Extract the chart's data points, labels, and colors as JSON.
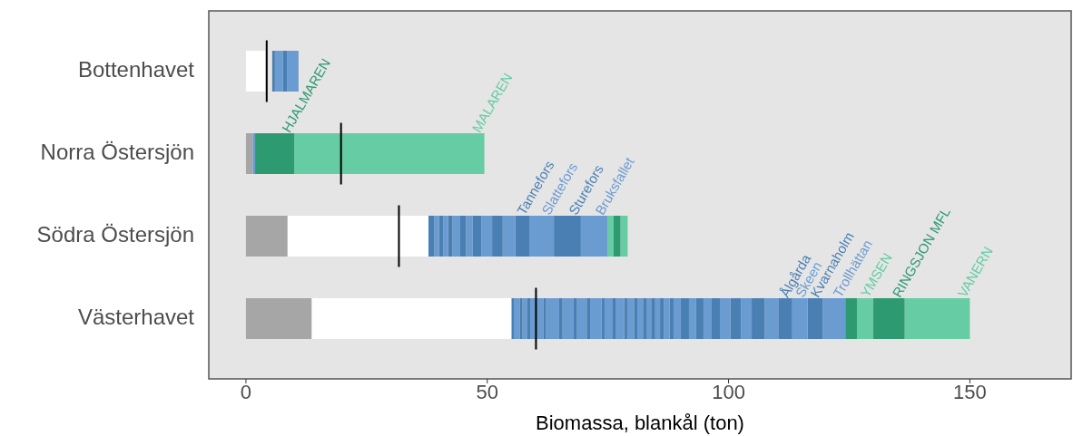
{
  "chart_data": {
    "type": "bar",
    "orientation": "horizontal",
    "stacked": true,
    "xlabel": "Biomassa, blankål (ton)",
    "categories": [
      "Bottenhavet",
      "Norra Östersjön",
      "Södra Östersjön",
      "Västerhavet"
    ],
    "xlim": [
      -7.7,
      171
    ],
    "xticks": [
      0,
      50,
      100,
      150
    ],
    "series": [
      {
        "values": [
          4.0,
          1.4,
          8.6,
          13.6
        ],
        "colors": [
          "#ffffff",
          "#a6a6a6",
          "#a6a6a6",
          "#a6a6a6"
        ]
      },
      {
        "values": [
          1.4,
          0.5,
          29.2,
          41.4
        ],
        "colors": [
          "#e5e5e5",
          "#6a9bd1",
          "#ffffff",
          "#ffffff"
        ]
      },
      {
        "values": [
          0.6,
          8.1,
          1.2,
          0.5
        ],
        "colors": [
          "#4a7fb3",
          "#2e9a72",
          "#4a7fb3",
          "#4a7fb3"
        ]
      },
      {
        "values": [
          1.7,
          39.4,
          1.0,
          1.2
        ],
        "colors": [
          "#6a9bd1",
          "#66cca3",
          "#6a9bd1",
          "#6a9bd1"
        ]
      },
      {
        "values": [
          0.8,
          null,
          0.9,
          0.6
        ],
        "colors": [
          "#4a7fb3",
          null,
          "#4a7fb3",
          "#4a7fb3"
        ]
      },
      {
        "values": [
          2.4,
          null,
          1.0,
          0.9
        ],
        "colors": [
          "#6a9bd1",
          null,
          "#6a9bd1",
          "#6a9bd1"
        ]
      },
      {
        "values": [
          null,
          null,
          0.9,
          0.7
        ],
        "colors": [
          null,
          null,
          "#4a7fb3",
          "#4a7fb3"
        ]
      },
      {
        "values": [
          null,
          null,
          1.6,
          2.7
        ],
        "colors": [
          null,
          null,
          "#6a9bd1",
          "#6a9bd1"
        ]
      },
      {
        "values": [
          null,
          null,
          1.2,
          0.6
        ],
        "colors": [
          null,
          null,
          "#4a7fb3",
          "#4a7fb3"
        ]
      },
      {
        "values": [
          null,
          null,
          1.4,
          2.7
        ],
        "colors": [
          null,
          null,
          "#6a9bd1",
          "#6a9bd1"
        ]
      },
      {
        "values": [
          null,
          null,
          1.8,
          0.7
        ],
        "colors": [
          null,
          null,
          "#4a7fb3",
          "#4a7fb3"
        ]
      },
      {
        "values": [
          null,
          null,
          2.2,
          2.3
        ],
        "colors": [
          null,
          null,
          "#6a9bd1",
          "#6a9bd1"
        ]
      },
      {
        "values": [
          null,
          null,
          2.2,
          0.7
        ],
        "colors": [
          null,
          null,
          "#4a7fb3",
          "#4a7fb3"
        ]
      },
      {
        "values": [
          null,
          null,
          2.6,
          2.0
        ],
        "colors": [
          null,
          null,
          "#6a9bd1",
          "#6a9bd1"
        ]
      },
      {
        "values": [
          null,
          null,
          2.9,
          0.7
        ],
        "colors": [
          null,
          null,
          "#4a7fb3",
          "#4a7fb3"
        ]
      },
      {
        "values": [
          null,
          null,
          5.1,
          2.4
        ],
        "colors": [
          null,
          null,
          "#6a9bd1",
          "#6a9bd1"
        ]
      },
      {
        "values": [
          null,
          null,
          5.6,
          0.6
        ],
        "colors": [
          null,
          null,
          "#4a7fb3",
          "#4a7fb3"
        ]
      },
      {
        "values": [
          null,
          null,
          5.5,
          1.7
        ],
        "colors": [
          null,
          null,
          "#6a9bd1",
          "#6a9bd1"
        ]
      },
      {
        "values": [
          null,
          null,
          1.3,
          0.7
        ],
        "colors": [
          null,
          null,
          "#66cca3",
          "#4a7fb3"
        ]
      },
      {
        "values": [
          null,
          null,
          1.4,
          1.7
        ],
        "colors": [
          null,
          null,
          "#2e9a72",
          "#6a9bd1"
        ]
      },
      {
        "values": [
          null,
          null,
          1.5,
          0.6
        ],
        "colors": [
          null,
          null,
          "#66cca3",
          "#4a7fb3"
        ]
      },
      {
        "values": [
          null,
          null,
          null,
          1.4
        ],
        "colors": [
          null,
          null,
          null,
          "#6a9bd1"
        ]
      },
      {
        "values": [
          null,
          null,
          null,
          0.7
        ],
        "colors": [
          null,
          null,
          null,
          "#4a7fb3"
        ]
      },
      {
        "values": [
          null,
          null,
          null,
          1.3
        ],
        "colors": [
          null,
          null,
          null,
          "#6a9bd1"
        ]
      },
      {
        "values": [
          null,
          null,
          null,
          0.7
        ],
        "colors": [
          null,
          null,
          null,
          "#4a7fb3"
        ]
      },
      {
        "values": [
          null,
          null,
          null,
          1.0
        ],
        "colors": [
          null,
          null,
          null,
          "#6a9bd1"
        ]
      },
      {
        "values": [
          null,
          null,
          null,
          0.7
        ],
        "colors": [
          null,
          null,
          null,
          "#4a7fb3"
        ]
      },
      {
        "values": [
          null,
          null,
          null,
          1.0
        ],
        "colors": [
          null,
          null,
          null,
          "#6a9bd1"
        ]
      },
      {
        "values": [
          null,
          null,
          null,
          0.8
        ],
        "colors": [
          null,
          null,
          null,
          "#4a7fb3"
        ]
      },
      {
        "values": [
          null,
          null,
          null,
          1.2
        ],
        "colors": [
          null,
          null,
          null,
          "#6a9bd1"
        ]
      },
      {
        "values": [
          null,
          null,
          null,
          0.8
        ],
        "colors": [
          null,
          null,
          null,
          "#4a7fb3"
        ]
      },
      {
        "values": [
          null,
          null,
          null,
          1.5
        ],
        "colors": [
          null,
          null,
          null,
          "#6a9bd1"
        ]
      },
      {
        "values": [
          null,
          null,
          null,
          1.7
        ],
        "colors": [
          null,
          null,
          null,
          "#4a7fb3"
        ]
      },
      {
        "values": [
          null,
          null,
          null,
          1.4
        ],
        "colors": [
          null,
          null,
          null,
          "#6a9bd1"
        ]
      },
      {
        "values": [
          null,
          null,
          null,
          1.6
        ],
        "colors": [
          null,
          null,
          null,
          "#4a7fb3"
        ]
      },
      {
        "values": [
          null,
          null,
          null,
          1.7
        ],
        "colors": [
          null,
          null,
          null,
          "#6a9bd1"
        ]
      },
      {
        "values": [
          null,
          null,
          null,
          1.7
        ],
        "colors": [
          null,
          null,
          null,
          "#4a7fb3"
        ]
      },
      {
        "values": [
          null,
          null,
          null,
          2.2
        ],
        "colors": [
          null,
          null,
          null,
          "#6a9bd1"
        ]
      },
      {
        "values": [
          null,
          null,
          null,
          2.2
        ],
        "colors": [
          null,
          null,
          null,
          "#4a7fb3"
        ]
      },
      {
        "values": [
          null,
          null,
          null,
          2.2
        ],
        "colors": [
          null,
          null,
          null,
          "#6a9bd1"
        ]
      },
      {
        "values": [
          null,
          null,
          null,
          2.7
        ],
        "colors": [
          null,
          null,
          null,
          "#4a7fb3"
        ]
      },
      {
        "values": [
          null,
          null,
          null,
          2.8
        ],
        "colors": [
          null,
          null,
          null,
          "#6a9bd1"
        ]
      },
      {
        "values": [
          null,
          null,
          null,
          2.9
        ],
        "colors": [
          null,
          null,
          null,
          "#4a7fb3"
        ]
      },
      {
        "values": [
          null,
          null,
          null,
          3.2
        ],
        "colors": [
          null,
          null,
          null,
          "#6a9bd1"
        ]
      },
      {
        "values": [
          null,
          null,
          null,
          3.1
        ],
        "colors": [
          null,
          null,
          null,
          "#4a7fb3"
        ]
      },
      {
        "values": [
          null,
          null,
          null,
          4.7
        ],
        "colors": [
          null,
          null,
          null,
          "#6a9bd1"
        ]
      },
      {
        "values": [
          null,
          null,
          null,
          2.4
        ],
        "colors": [
          null,
          null,
          null,
          "#2e9a72"
        ]
      },
      {
        "values": [
          null,
          null,
          null,
          3.3
        ],
        "colors": [
          null,
          null,
          null,
          "#66cca3"
        ]
      },
      {
        "values": [
          null,
          null,
          null,
          6.6
        ],
        "colors": [
          null,
          null,
          null,
          "#2e9a72"
        ]
      },
      {
        "values": [
          null,
          null,
          null,
          13.5
        ],
        "colors": [
          null,
          null,
          null,
          "#66cca3"
        ]
      },
      {
        "type": "box",
        "color": "#000000",
        "boxes": [
          {
            "low": 4.3,
            "q1": 4.3,
            "median": 4.3,
            "q3": 4.3,
            "high": 4.3
          },
          {
            "low": 19.7,
            "q1": 19.7,
            "median": 19.7,
            "q3": 19.7,
            "high": 19.7
          },
          {
            "low": 31.7,
            "q1": 31.7,
            "median": 31.7,
            "q3": 31.7,
            "high": 31.7
          },
          {
            "low": 60.1,
            "q1": 60.1,
            "median": 60.1,
            "q3": 60.1,
            "high": 60.1
          }
        ]
      }
    ],
    "annotations": [
      {
        "text": "HJALMAREN",
        "x": 10.0,
        "y": "Norra Östersjön"
      },
      {
        "text": "MALAREN",
        "x": 49.4,
        "y": "Norra Östersjön"
      },
      {
        "text": "Tannefors",
        "x": 58.7,
        "y": "Södra Östersjön"
      },
      {
        "text": "Slattefors",
        "x": 63.8,
        "y": "Södra Östersjön"
      },
      {
        "text": "Sturefors",
        "x": 69.4,
        "y": "Södra Östersjön"
      },
      {
        "text": "Bruksfallet",
        "x": 74.9,
        "y": "Södra Östersjön"
      },
      {
        "text": "Ålgårda",
        "x": 113.2,
        "y": "Västerhavet"
      },
      {
        "text": "Skeen",
        "x": 116.4,
        "y": "Västerhavet"
      },
      {
        "text": "Kvarnaholm",
        "x": 119.5,
        "y": "Västerhavet"
      },
      {
        "text": "Trollhättan",
        "x": 124.2,
        "y": "Västerhavet"
      },
      {
        "text": "YMSEN",
        "x": 129.9,
        "y": "Västerhavet"
      },
      {
        "text": "RINGSJON MFL",
        "x": 136.5,
        "y": "Västerhavet"
      },
      {
        "text": "VANERN",
        "x": 150.0,
        "y": "Västerhavet"
      }
    ]
  }
}
